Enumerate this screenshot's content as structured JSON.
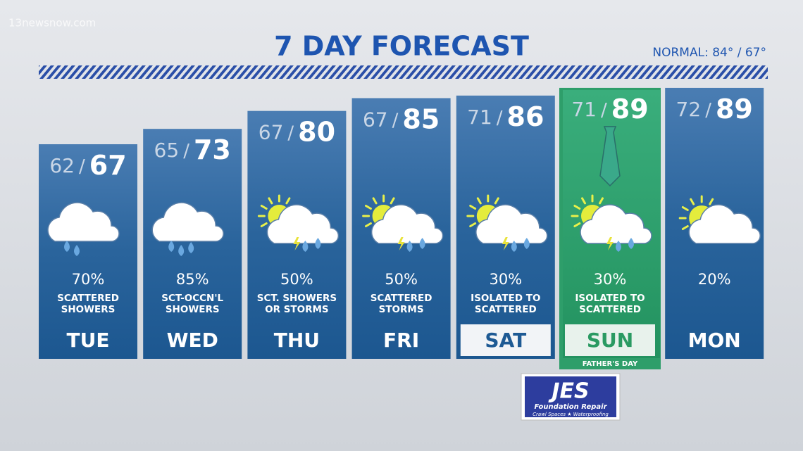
{
  "watermark": "13newsnow.com",
  "header": {
    "title": "7 DAY FORECAST",
    "normal": "NORMAL: 84° / 67°"
  },
  "temp_separator": "/",
  "days": [
    {
      "day": "TUE",
      "low": 62,
      "high": 67,
      "precip": "70%",
      "desc": [
        "SCATTERED",
        "SHOWERS"
      ]
    },
    {
      "day": "WED",
      "low": 65,
      "high": 73,
      "precip": "85%",
      "desc": [
        "SCT-OCCN'L",
        "SHOWERS"
      ]
    },
    {
      "day": "THU",
      "low": 67,
      "high": 80,
      "precip": "50%",
      "desc": [
        "SCT. SHOWERS",
        "OR STORMS"
      ]
    },
    {
      "day": "FRI",
      "low": 67,
      "high": 85,
      "precip": "50%",
      "desc": [
        "SCATTERED",
        "STORMS"
      ]
    },
    {
      "day": "SAT",
      "low": 71,
      "high": 86,
      "precip": "30%",
      "desc": [
        "ISOLATED TO",
        "SCATTERED"
      ]
    },
    {
      "day": "SUN",
      "low": 71,
      "high": 89,
      "precip": "30%",
      "desc": [
        "ISOLATED TO",
        "SCATTERED"
      ],
      "note": "FATHER'S DAY"
    },
    {
      "day": "MON",
      "low": 72,
      "high": 89,
      "precip": "20%",
      "desc": []
    }
  ],
  "sponsor": {
    "name": "JES",
    "line1": "Foundation Repair",
    "line2": "Crawl Spaces ★ Waterproofing"
  }
}
